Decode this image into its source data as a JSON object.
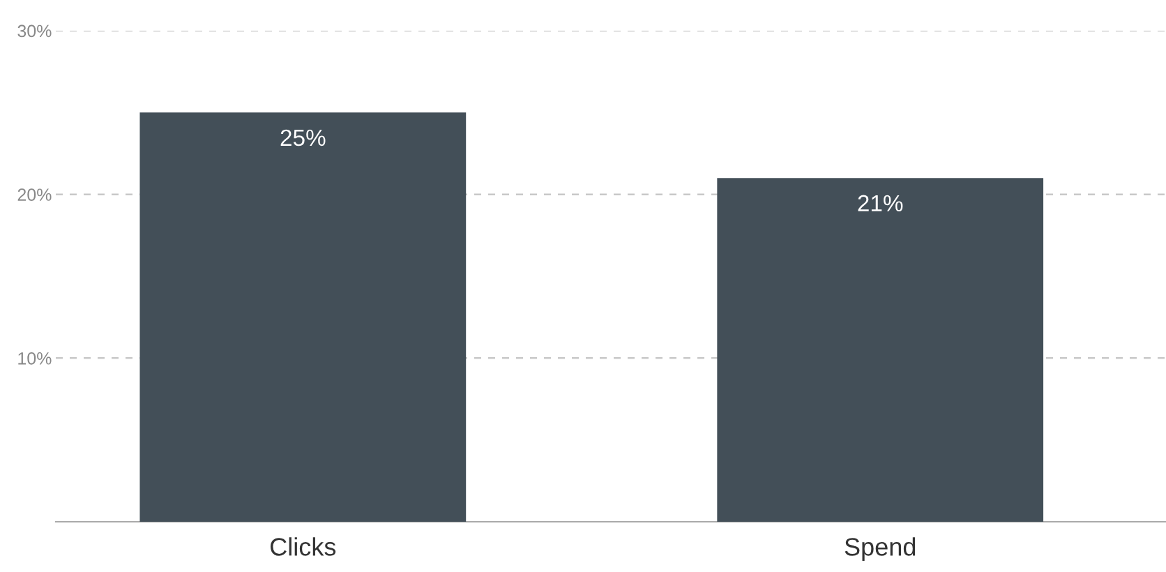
{
  "chart_data": {
    "type": "bar",
    "categories": [
      "Clicks",
      "Spend"
    ],
    "values": [
      25,
      21
    ],
    "color": "#434f58",
    "value_labels": [
      "25%",
      "21%"
    ],
    "ylim": [
      0,
      30
    ],
    "yticks": [
      {
        "value": 10,
        "label": "10%"
      },
      {
        "value": 20,
        "label": "20%"
      },
      {
        "value": 30,
        "label": "30%"
      }
    ],
    "grid": "y"
  }
}
